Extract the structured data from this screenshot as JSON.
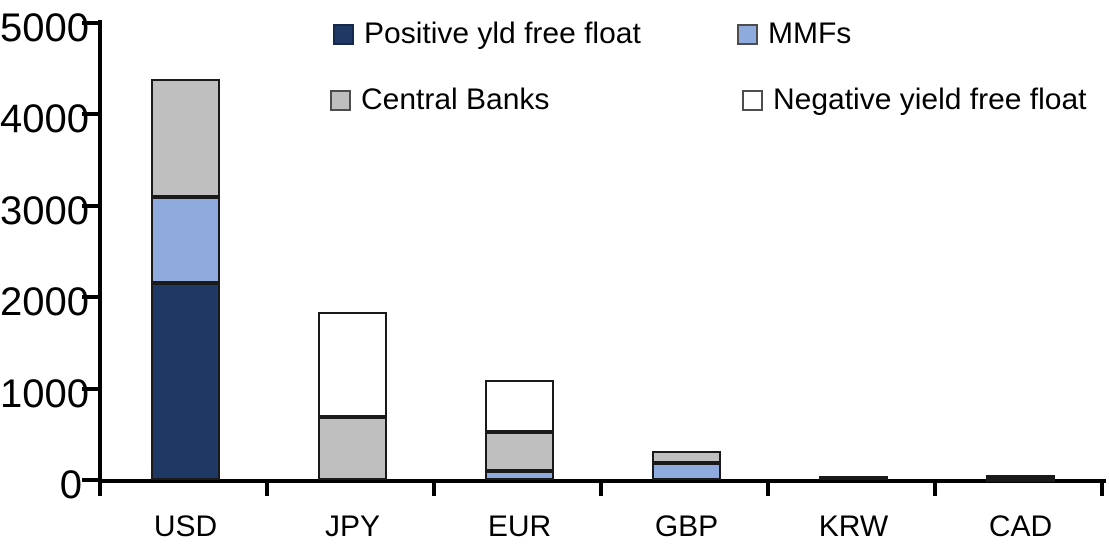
{
  "chart_data": {
    "type": "bar",
    "stacked": true,
    "title": "",
    "xlabel": "",
    "ylabel": "",
    "ylim": [
      0,
      5000
    ],
    "grid": false,
    "legend_position": "top",
    "y_ticks": [
      "0",
      "1000",
      "2000",
      "3000",
      "4000",
      "5000"
    ],
    "y_tick_values": [
      0,
      1000,
      2000,
      3000,
      4000,
      5000
    ],
    "categories": [
      "USD",
      "JPY",
      "EUR",
      "GBP",
      "KRW",
      "CAD"
    ],
    "series": [
      {
        "name": "Positive yld free float",
        "color": "#1F3864",
        "values": [
          2150,
          0,
          0,
          0,
          45,
          25
        ]
      },
      {
        "name": "MMFs",
        "color": "#8FAADC",
        "values": [
          945,
          0,
          100,
          190,
          0,
          0
        ]
      },
      {
        "name": "Central Banks",
        "color": "#BFBFBF",
        "values": [
          1290,
          690,
          430,
          130,
          0,
          35
        ]
      },
      {
        "name": "Negative yield free float",
        "color": "#FFFFFF",
        "values": [
          0,
          1150,
          565,
          0,
          0,
          0
        ]
      }
    ],
    "totals": [
      4385,
      1840,
      1095,
      320,
      45,
      60
    ],
    "legend_order": [
      0,
      1,
      2,
      3
    ],
    "colors": {
      "positive_yld_free_float": "#1F3864",
      "mmfs": "#8FAADC",
      "central_banks": "#BFBFBF",
      "negative_yield_free_float": "#FFFFFF",
      "axis": "#000000"
    }
  }
}
